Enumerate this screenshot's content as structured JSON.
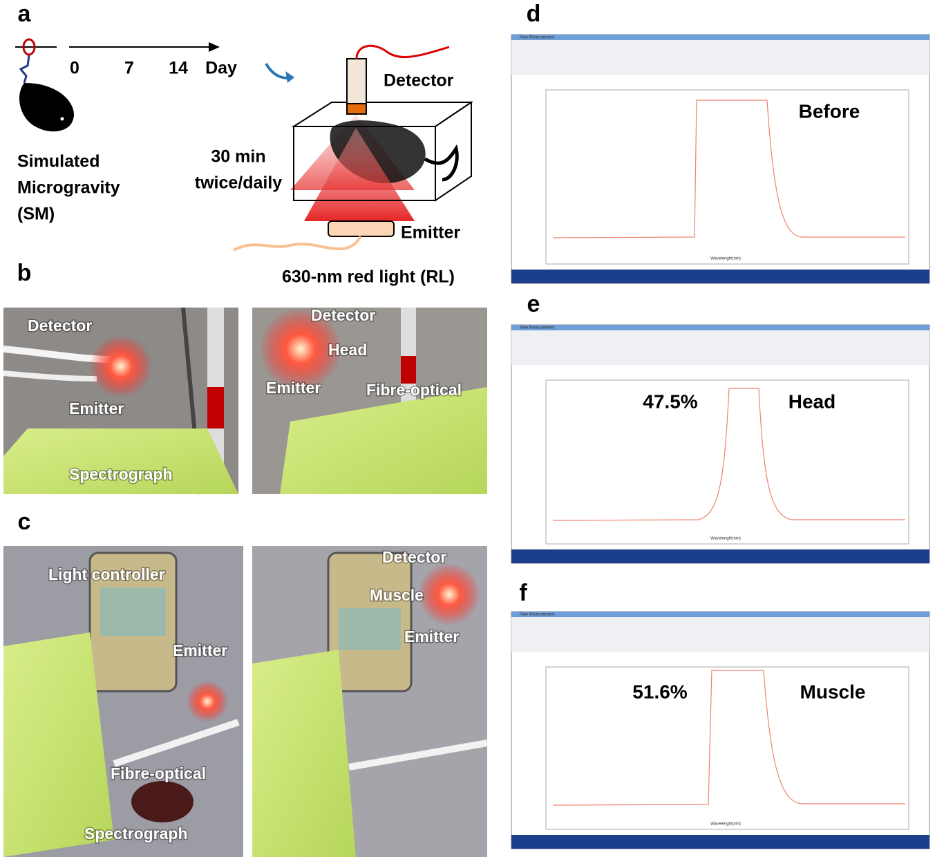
{
  "panels": {
    "a": {
      "label": "a",
      "timeline": [
        "0",
        "7",
        "14",
        "Day"
      ],
      "group": [
        "Simulated",
        "Microgravity",
        "(SM)"
      ],
      "duration": [
        "30 min",
        "twice/daily"
      ],
      "detector": "Detector",
      "emitter": "Emitter",
      "light": "630-nm red light (RL)"
    },
    "b": {
      "label": "b",
      "left": [
        "Detector",
        "Emitter",
        "Spectrograph"
      ],
      "right": [
        "Detector",
        "Head",
        "Emitter",
        "Fibre-optical"
      ]
    },
    "c": {
      "label": "c",
      "left": [
        "Light controller",
        "Emitter",
        "Fibre-optical",
        "Spectrograph"
      ],
      "right": [
        "Detector",
        "Muscle",
        "Emitter"
      ]
    },
    "d": {
      "label": "d",
      "window_title": "New Measurement",
      "x_axis": "Wavelength(nm)",
      "caption": "Before"
    },
    "e": {
      "label": "e",
      "window_title": "New Measurement",
      "x_axis": "Wavelength(nm)",
      "percent": "47.5%",
      "caption": "Head"
    },
    "f": {
      "label": "f",
      "window_title": "New Measurement",
      "x_axis": "Wavelength(nm)",
      "percent": "51.6%",
      "caption": "Muscle"
    }
  }
}
